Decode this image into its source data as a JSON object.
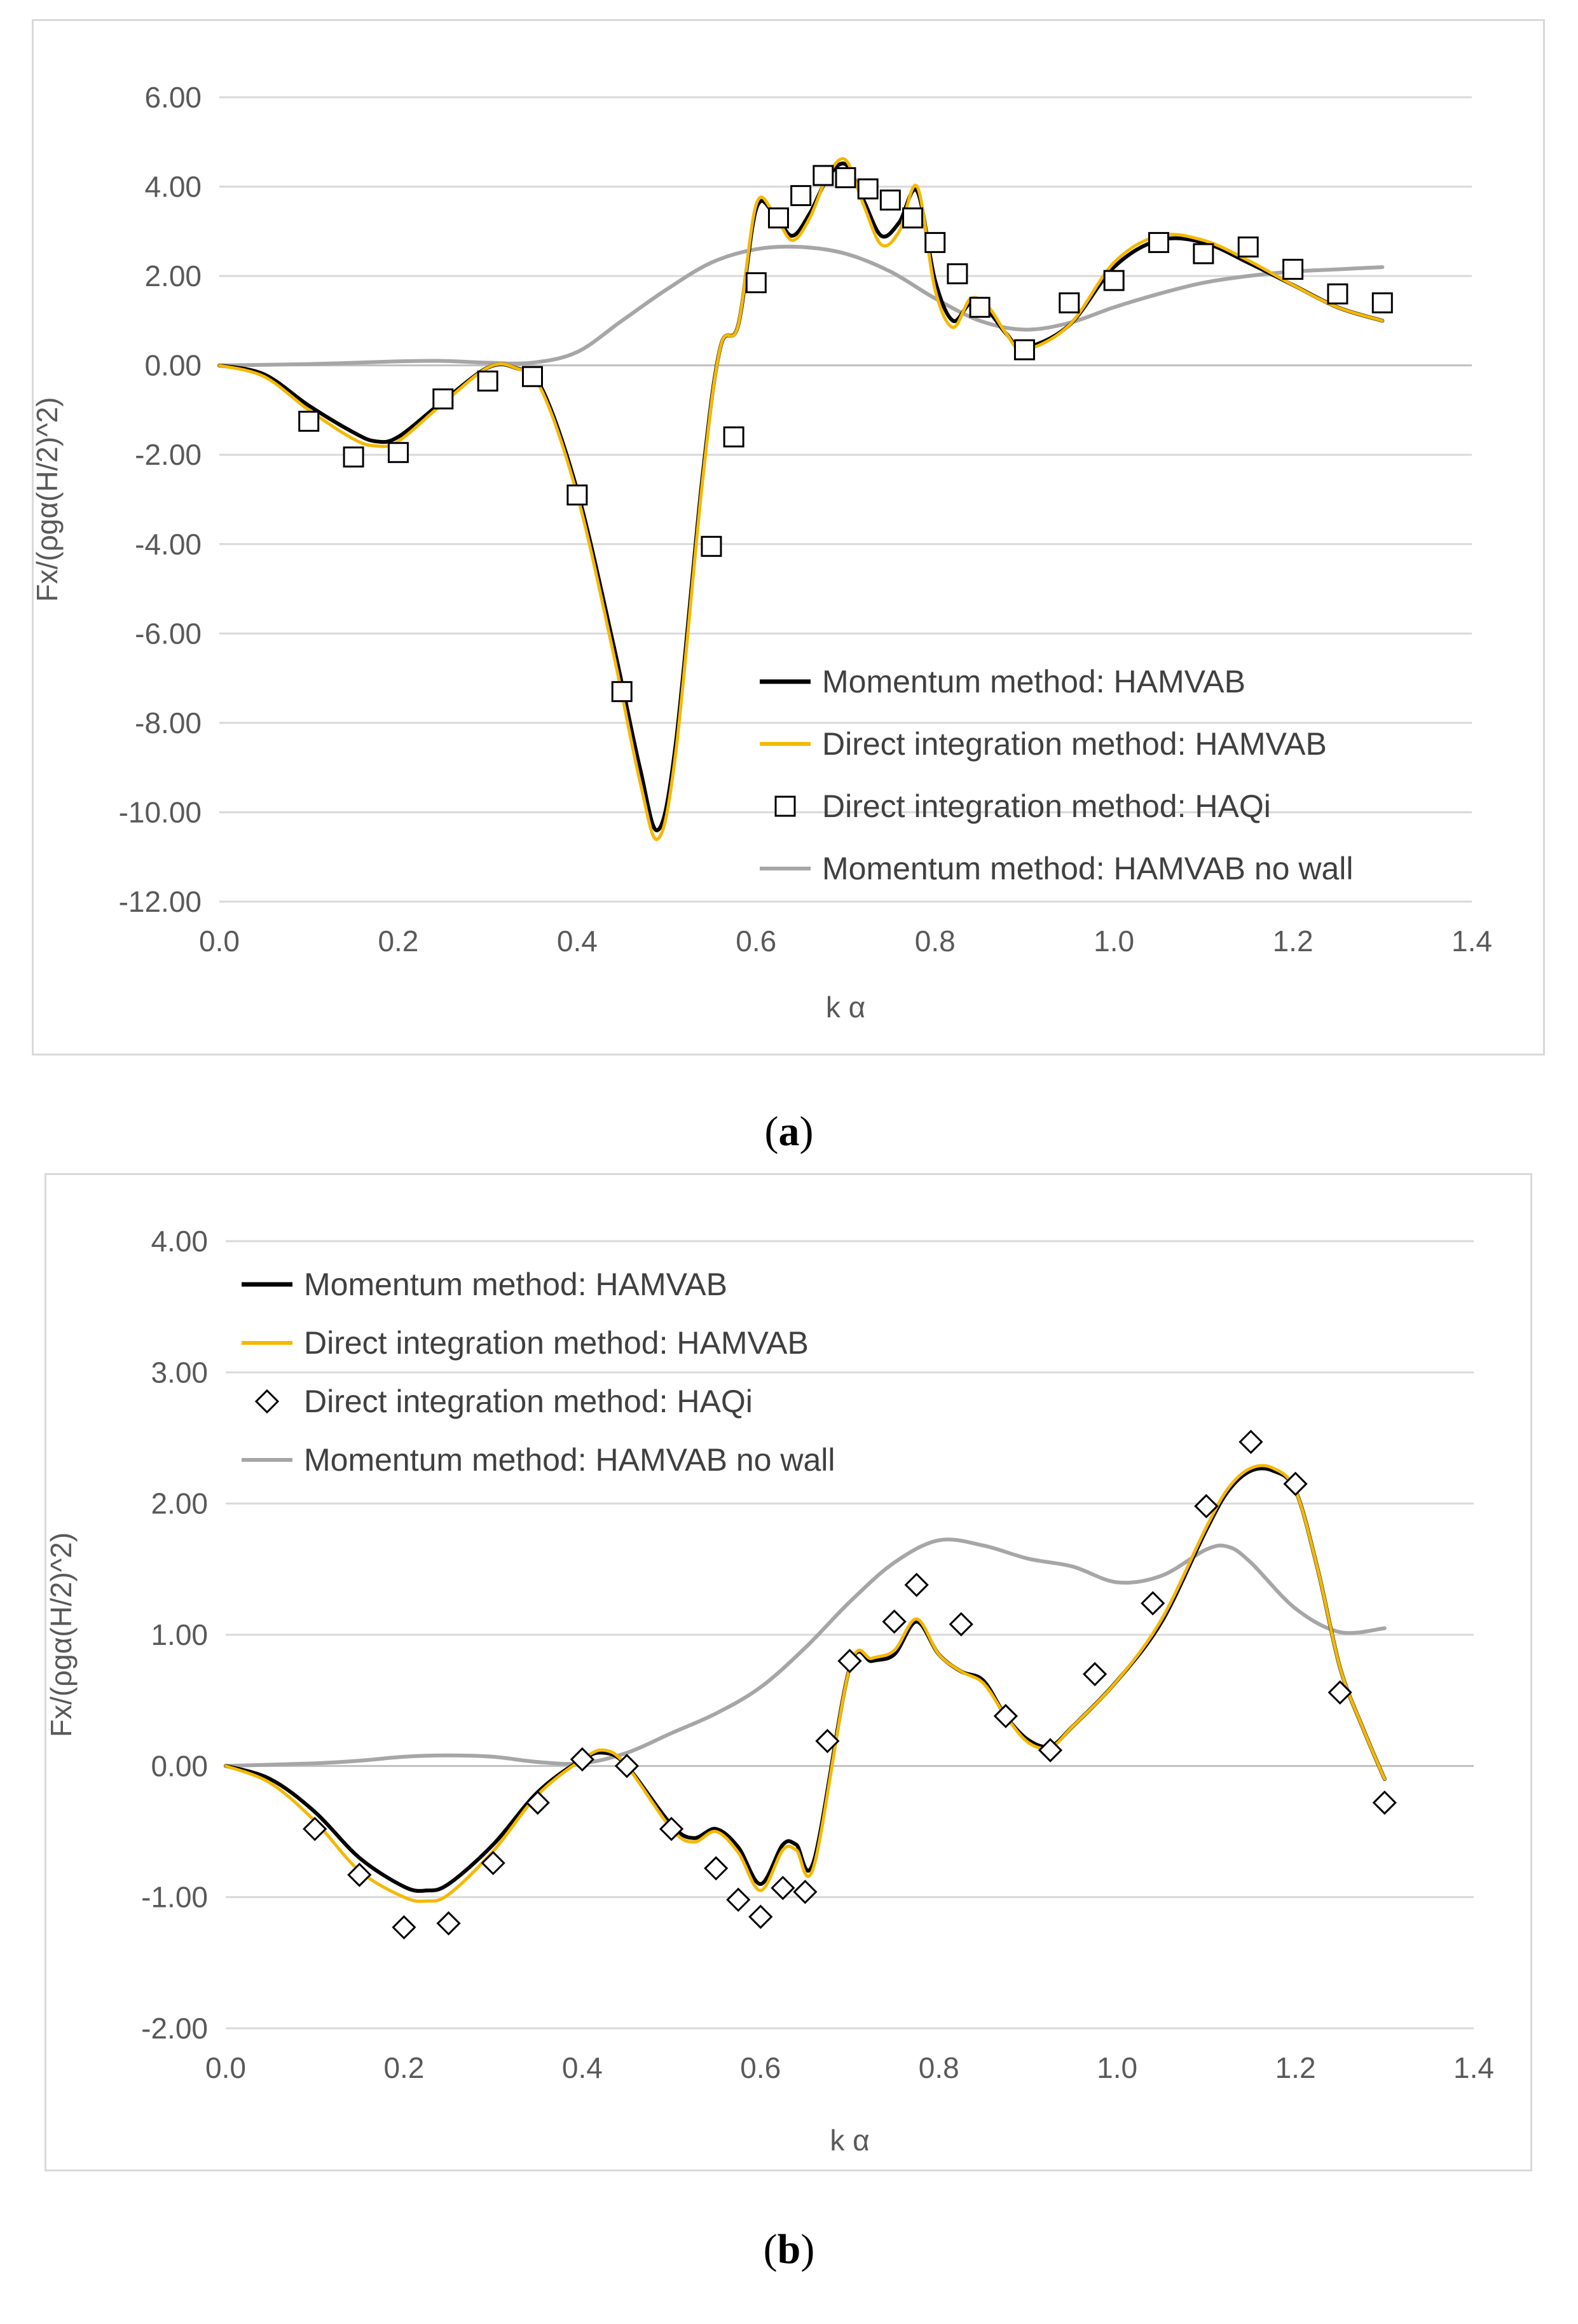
{
  "captions": {
    "a": "a",
    "b": "b"
  },
  "colors": {
    "momentum": "#000000",
    "direct": "#f5b800",
    "nowall": "#a6a6a6",
    "grid": "#d9d9d9",
    "axis": "#bfbfbf"
  },
  "chart_data": [
    {
      "type": "line",
      "panel": "a",
      "xlabel": "k α",
      "ylabel": "Fx/(ρgα(H/2)^2)",
      "xlim": [
        0,
        1.4
      ],
      "ylim": [
        -12,
        6
      ],
      "x_ticks": [
        "0.0",
        "0.2",
        "0.4",
        "0.6",
        "0.8",
        "1.0",
        "1.2",
        "1.4"
      ],
      "y_ticks": [
        "6.00",
        "4.00",
        "2.00",
        "0.00",
        "-2.00",
        "-4.00",
        "-6.00",
        "-8.00",
        "-10.00",
        "-12.00"
      ],
      "legend_position": "bottom-right",
      "series": [
        {
          "name": "Momentum method: HAMVAB",
          "kind": "line",
          "color": "#000000",
          "x": [
            0,
            0.05,
            0.1,
            0.15,
            0.175,
            0.2,
            0.25,
            0.3,
            0.33,
            0.36,
            0.4,
            0.44,
            0.47,
            0.49,
            0.51,
            0.54,
            0.56,
            0.58,
            0.6,
            0.62,
            0.64,
            0.66,
            0.68,
            0.7,
            0.72,
            0.74,
            0.76,
            0.78,
            0.8,
            0.82,
            0.84,
            0.86,
            0.88,
            0.9,
            0.95,
            1.0,
            1.05,
            1.1,
            1.15,
            1.2,
            1.25,
            1.3
          ],
          "y": [
            0,
            -0.2,
            -0.9,
            -1.5,
            -1.7,
            -1.6,
            -0.8,
            -0.05,
            -0.05,
            -0.5,
            -2.8,
            -6.2,
            -9.0,
            -10.4,
            -8.5,
            -2.5,
            0.4,
            0.9,
            3.5,
            3.4,
            2.9,
            3.4,
            4.2,
            4.5,
            3.7,
            2.9,
            3.2,
            3.9,
            1.9,
            1.0,
            1.4,
            1.2,
            0.7,
            0.4,
            0.9,
            2.2,
            2.8,
            2.75,
            2.3,
            1.8,
            1.3,
            1.0
          ]
        },
        {
          "name": "Direct integration method: HAMVAB",
          "kind": "line",
          "color": "#f5b800",
          "x": [
            0,
            0.05,
            0.1,
            0.15,
            0.175,
            0.2,
            0.25,
            0.3,
            0.33,
            0.36,
            0.4,
            0.44,
            0.47,
            0.49,
            0.51,
            0.54,
            0.56,
            0.58,
            0.6,
            0.62,
            0.64,
            0.66,
            0.68,
            0.7,
            0.72,
            0.74,
            0.76,
            0.78,
            0.8,
            0.82,
            0.84,
            0.86,
            0.88,
            0.9,
            0.95,
            1.0,
            1.05,
            1.1,
            1.15,
            1.2,
            1.25,
            1.3
          ],
          "y": [
            0,
            -0.25,
            -1.0,
            -1.65,
            -1.8,
            -1.7,
            -0.85,
            -0.05,
            -0.05,
            -0.55,
            -2.9,
            -6.4,
            -9.3,
            -10.6,
            -8.7,
            -2.6,
            0.4,
            0.9,
            3.6,
            3.4,
            2.8,
            3.3,
            4.25,
            4.6,
            3.6,
            2.7,
            3.0,
            4.0,
            1.7,
            0.85,
            1.5,
            1.3,
            0.7,
            0.35,
            0.9,
            2.3,
            2.9,
            2.8,
            2.35,
            1.8,
            1.3,
            1.0
          ]
        },
        {
          "name": "Direct integration method: HAQi",
          "kind": "scatter",
          "marker": "square",
          "x": [
            0.1,
            0.15,
            0.2,
            0.25,
            0.3,
            0.35,
            0.4,
            0.45,
            0.55,
            0.575,
            0.6,
            0.625,
            0.65,
            0.675,
            0.7,
            0.725,
            0.75,
            0.775,
            0.8,
            0.825,
            0.85,
            0.9,
            0.95,
            1.0,
            1.05,
            1.1,
            1.15,
            1.2,
            1.25,
            1.3
          ],
          "y": [
            -1.25,
            -2.05,
            -1.95,
            -0.75,
            -0.35,
            -0.25,
            -2.9,
            -7.3,
            -4.05,
            -1.6,
            1.85,
            3.3,
            3.8,
            4.25,
            4.2,
            3.95,
            3.7,
            3.3,
            2.75,
            2.05,
            1.3,
            0.35,
            1.4,
            1.9,
            2.75,
            2.5,
            2.65,
            2.15,
            1.6,
            1.4
          ]
        },
        {
          "name": "Momentum method: HAMVAB no wall",
          "kind": "line",
          "color": "#a6a6a6",
          "x": [
            0,
            0.1,
            0.2,
            0.25,
            0.3,
            0.35,
            0.4,
            0.45,
            0.5,
            0.55,
            0.6,
            0.65,
            0.7,
            0.75,
            0.8,
            0.85,
            0.9,
            0.95,
            1.0,
            1.05,
            1.1,
            1.15,
            1.2,
            1.25,
            1.3
          ],
          "y": [
            0,
            0.03,
            0.09,
            0.1,
            0.06,
            0.06,
            0.3,
            1.0,
            1.7,
            2.3,
            2.6,
            2.65,
            2.5,
            2.1,
            1.5,
            1.0,
            0.8,
            0.95,
            1.3,
            1.6,
            1.85,
            2.0,
            2.1,
            2.15,
            2.2
          ]
        }
      ]
    },
    {
      "type": "line",
      "panel": "b",
      "xlabel": "k α",
      "ylabel": "Fx/(ρgα(H/2)^2)",
      "xlim": [
        0,
        1.4
      ],
      "ylim": [
        -2,
        4
      ],
      "x_ticks": [
        "0.0",
        "0.2",
        "0.4",
        "0.6",
        "0.8",
        "1.0",
        "1.2",
        "1.4"
      ],
      "y_ticks": [
        "4.00",
        "3.00",
        "2.00",
        "1.00",
        "0.00",
        "-1.00",
        "-2.00"
      ],
      "legend_position": "top-left",
      "series": [
        {
          "name": "Momentum method: HAMVAB",
          "kind": "line",
          "color": "#000000",
          "x": [
            0,
            0.05,
            0.1,
            0.15,
            0.2,
            0.225,
            0.25,
            0.3,
            0.35,
            0.4,
            0.425,
            0.45,
            0.5,
            0.525,
            0.55,
            0.575,
            0.6,
            0.625,
            0.64,
            0.66,
            0.7,
            0.725,
            0.75,
            0.775,
            0.8,
            0.825,
            0.85,
            0.875,
            0.9,
            0.925,
            0.95,
            1.0,
            1.05,
            1.1,
            1.125,
            1.15,
            1.175,
            1.2,
            1.225,
            1.25,
            1.275,
            1.3
          ],
          "y": [
            0,
            -0.1,
            -0.35,
            -0.7,
            -0.92,
            -0.95,
            -0.9,
            -0.6,
            -0.2,
            0.05,
            0.1,
            0.0,
            -0.45,
            -0.55,
            -0.48,
            -0.62,
            -0.9,
            -0.6,
            -0.6,
            -0.72,
            0.75,
            0.8,
            0.85,
            1.1,
            0.85,
            0.72,
            0.65,
            0.38,
            0.2,
            0.15,
            0.3,
            0.65,
            1.1,
            1.8,
            2.1,
            2.25,
            2.25,
            2.1,
            1.5,
            0.75,
            0.3,
            -0.1
          ]
        },
        {
          "name": "Direct integration method: HAMVAB",
          "kind": "line",
          "color": "#f5b800",
          "x": [
            0,
            0.05,
            0.1,
            0.15,
            0.2,
            0.225,
            0.25,
            0.3,
            0.35,
            0.4,
            0.425,
            0.45,
            0.5,
            0.525,
            0.55,
            0.575,
            0.6,
            0.625,
            0.64,
            0.66,
            0.7,
            0.725,
            0.75,
            0.775,
            0.8,
            0.825,
            0.85,
            0.875,
            0.9,
            0.925,
            0.95,
            1.0,
            1.05,
            1.1,
            1.125,
            1.15,
            1.175,
            1.2,
            1.225,
            1.25,
            1.275,
            1.3
          ],
          "y": [
            0,
            -0.13,
            -0.42,
            -0.8,
            -1.0,
            -1.03,
            -0.98,
            -0.65,
            -0.22,
            0.05,
            0.12,
            0.0,
            -0.48,
            -0.58,
            -0.5,
            -0.66,
            -0.95,
            -0.64,
            -0.64,
            -0.76,
            0.75,
            0.82,
            0.88,
            1.12,
            0.85,
            0.72,
            0.63,
            0.38,
            0.18,
            0.14,
            0.3,
            0.65,
            1.12,
            1.82,
            2.12,
            2.27,
            2.27,
            2.1,
            1.5,
            0.75,
            0.3,
            -0.1
          ]
        },
        {
          "name": "Direct integration method: HAQi",
          "kind": "scatter",
          "marker": "diamond",
          "x": [
            0.1,
            0.15,
            0.2,
            0.25,
            0.3,
            0.35,
            0.4,
            0.45,
            0.5,
            0.55,
            0.575,
            0.6,
            0.625,
            0.65,
            0.675,
            0.7,
            0.75,
            0.775,
            0.825,
            0.875,
            0.925,
            0.975,
            1.04,
            1.1,
            1.15,
            1.2,
            1.25,
            1.3
          ],
          "y": [
            -0.48,
            -0.83,
            -1.23,
            -1.2,
            -0.74,
            -0.28,
            0.05,
            0.0,
            -0.48,
            -0.78,
            -1.02,
            -1.15,
            -0.93,
            -0.96,
            0.19,
            0.8,
            1.1,
            1.38,
            1.08,
            0.38,
            0.12,
            0.7,
            1.24,
            1.98,
            2.47,
            2.15,
            0.56,
            -0.28
          ]
        },
        {
          "name": "Momentum method: HAMVAB no wall",
          "kind": "line",
          "color": "#a6a6a6",
          "x": [
            0,
            0.1,
            0.15,
            0.2,
            0.25,
            0.3,
            0.35,
            0.4,
            0.45,
            0.5,
            0.55,
            0.6,
            0.65,
            0.7,
            0.75,
            0.8,
            0.85,
            0.9,
            0.95,
            1.0,
            1.05,
            1.1,
            1.125,
            1.15,
            1.2,
            1.25,
            1.3
          ],
          "y": [
            0,
            0.02,
            0.04,
            0.07,
            0.08,
            0.07,
            0.03,
            0.02,
            0.1,
            0.25,
            0.4,
            0.6,
            0.9,
            1.25,
            1.55,
            1.72,
            1.68,
            1.58,
            1.52,
            1.4,
            1.45,
            1.65,
            1.67,
            1.55,
            1.2,
            1.02,
            1.05
          ]
        }
      ]
    }
  ]
}
